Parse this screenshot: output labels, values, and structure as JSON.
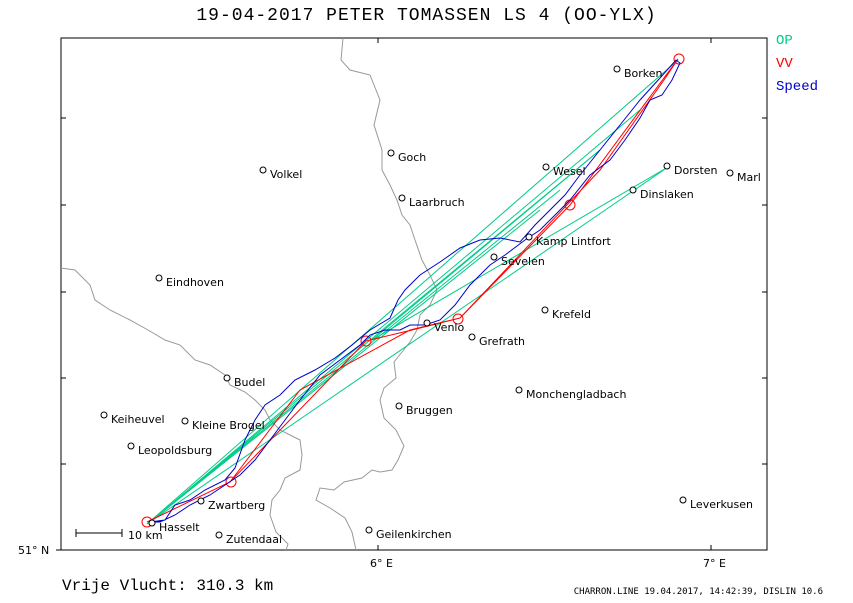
{
  "title": "19-04-2017   PETER TOMASSEN   LS 4 (OO-YLX)",
  "legend": [
    {
      "label": "OP",
      "color": "#00cc88"
    },
    {
      "label": "VV",
      "color": "#ff0000"
    },
    {
      "label": "Speed",
      "color": "#0000cc"
    }
  ],
  "footer": {
    "distance": "Vrije Vlucht:  310.3 km",
    "info": "CHARRON.LINE 19.04.2017, 14:42:39, DISLIN 10.6"
  },
  "axes": {
    "x_ticks": [
      "6° E",
      "7° E"
    ],
    "y_ticks": [
      "51° N"
    ]
  },
  "scale_bar": "10  km",
  "places": [
    {
      "name": "Borken"
    },
    {
      "name": "Goch"
    },
    {
      "name": "Volkel"
    },
    {
      "name": "Wesel"
    },
    {
      "name": "Dorsten"
    },
    {
      "name": "Marl"
    },
    {
      "name": "Laarbruch"
    },
    {
      "name": "Dinslaken"
    },
    {
      "name": "Kamp Lintfort"
    },
    {
      "name": "Sevelen"
    },
    {
      "name": "Eindhoven"
    },
    {
      "name": "Krefeld"
    },
    {
      "name": "Venlo"
    },
    {
      "name": "Grefrath"
    },
    {
      "name": "Budel"
    },
    {
      "name": "Monchengladbach"
    },
    {
      "name": "Keiheuvel"
    },
    {
      "name": "Kleine Brogel"
    },
    {
      "name": "Bruggen"
    },
    {
      "name": "Leopoldsburg"
    },
    {
      "name": "Zwartberg"
    },
    {
      "name": "Leverkusen"
    },
    {
      "name": "Hasselt"
    },
    {
      "name": "Zutendaal"
    },
    {
      "name": "Geilenkirchen"
    }
  ]
}
